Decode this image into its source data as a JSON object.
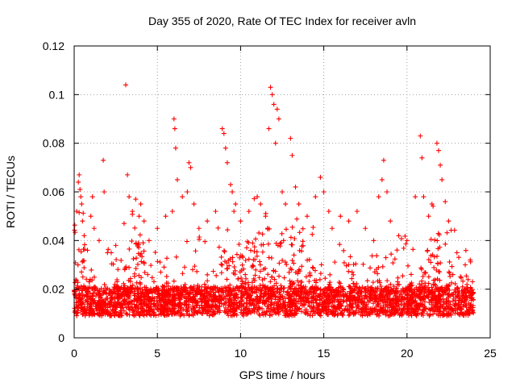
{
  "chart_data": {
    "type": "scatter",
    "title": "Day 355 of 2020, Rate Of TEC Index for receiver avln",
    "xlabel": "GPS time / hours",
    "ylabel": "ROTI / TECUs",
    "xlim": [
      0,
      25
    ],
    "ylim": [
      0,
      0.12
    ],
    "x_ticks": [
      "0",
      "5",
      "10",
      "15",
      "20",
      "25"
    ],
    "y_ticks": [
      "0",
      "0.02",
      "0.04",
      "0.06",
      "0.08",
      "0.1",
      "0.12"
    ],
    "grid": true,
    "marker": "+",
    "color": "#ff0000",
    "series": [
      {
        "points": [
          [
            0.15,
            0.052
          ],
          [
            0.25,
            0.064
          ],
          [
            0.3,
            0.067
          ],
          [
            0.35,
            0.061
          ],
          [
            0.4,
            0.058
          ],
          [
            0.45,
            0.055
          ],
          [
            0.5,
            0.048
          ],
          [
            0.6,
            0.042
          ],
          [
            0.8,
            0.036
          ],
          [
            1.0,
            0.05
          ],
          [
            1.1,
            0.058
          ],
          [
            1.2,
            0.045
          ],
          [
            1.5,
            0.04
          ],
          [
            1.75,
            0.073
          ],
          [
            1.8,
            0.06
          ],
          [
            2.0,
            0.035
          ],
          [
            2.5,
            0.038
          ],
          [
            3.0,
            0.047
          ],
          [
            3.1,
            0.104
          ],
          [
            3.2,
            0.067
          ],
          [
            3.3,
            0.058
          ],
          [
            3.5,
            0.052
          ],
          [
            3.7,
            0.057
          ],
          [
            3.9,
            0.05
          ],
          [
            4.0,
            0.055
          ],
          [
            4.2,
            0.048
          ],
          [
            4.5,
            0.04
          ],
          [
            5.0,
            0.045
          ],
          [
            5.5,
            0.05
          ],
          [
            5.9,
            0.052
          ],
          [
            6.0,
            0.09
          ],
          [
            6.05,
            0.086
          ],
          [
            6.1,
            0.078
          ],
          [
            6.2,
            0.065
          ],
          [
            6.5,
            0.058
          ],
          [
            6.8,
            0.06
          ],
          [
            6.9,
            0.072
          ],
          [
            7.0,
            0.07
          ],
          [
            7.2,
            0.055
          ],
          [
            7.5,
            0.045
          ],
          [
            8.0,
            0.048
          ],
          [
            8.5,
            0.052
          ],
          [
            8.9,
            0.086
          ],
          [
            9.0,
            0.084
          ],
          [
            9.1,
            0.078
          ],
          [
            9.2,
            0.072
          ],
          [
            9.4,
            0.063
          ],
          [
            9.5,
            0.06
          ],
          [
            9.6,
            0.052
          ],
          [
            9.7,
            0.055
          ],
          [
            10.0,
            0.048
          ],
          [
            10.5,
            0.052
          ],
          [
            11.0,
            0.058
          ],
          [
            11.2,
            0.055
          ],
          [
            11.5,
            0.05
          ],
          [
            11.7,
            0.086
          ],
          [
            11.8,
            0.103
          ],
          [
            11.9,
            0.1
          ],
          [
            12.0,
            0.096
          ],
          [
            12.1,
            0.08
          ],
          [
            12.2,
            0.094
          ],
          [
            12.3,
            0.09
          ],
          [
            12.5,
            0.06
          ],
          [
            12.7,
            0.055
          ],
          [
            13.0,
            0.082
          ],
          [
            13.1,
            0.075
          ],
          [
            13.3,
            0.062
          ],
          [
            13.5,
            0.055
          ],
          [
            14.0,
            0.05
          ],
          [
            14.5,
            0.058
          ],
          [
            14.8,
            0.066
          ],
          [
            15.0,
            0.06
          ],
          [
            15.3,
            0.052
          ],
          [
            15.5,
            0.045
          ],
          [
            16.0,
            0.05
          ],
          [
            16.5,
            0.048
          ],
          [
            17.0,
            0.052
          ],
          [
            17.5,
            0.045
          ],
          [
            18.0,
            0.04
          ],
          [
            18.3,
            0.058
          ],
          [
            18.5,
            0.065
          ],
          [
            18.6,
            0.073
          ],
          [
            18.8,
            0.06
          ],
          [
            19.0,
            0.048
          ],
          [
            19.5,
            0.042
          ],
          [
            20.0,
            0.04
          ],
          [
            20.5,
            0.058
          ],
          [
            20.8,
            0.083
          ],
          [
            20.9,
            0.074
          ],
          [
            21.0,
            0.058
          ],
          [
            21.3,
            0.05
          ],
          [
            21.5,
            0.055
          ],
          [
            21.8,
            0.08
          ],
          [
            21.9,
            0.077
          ],
          [
            22.0,
            0.071
          ],
          [
            22.1,
            0.065
          ],
          [
            22.3,
            0.056
          ],
          [
            22.5,
            0.048
          ],
          [
            23.0,
            0.035
          ],
          [
            23.5,
            0.03
          ],
          [
            23.8,
            0.032
          ]
        ]
      }
    ]
  }
}
